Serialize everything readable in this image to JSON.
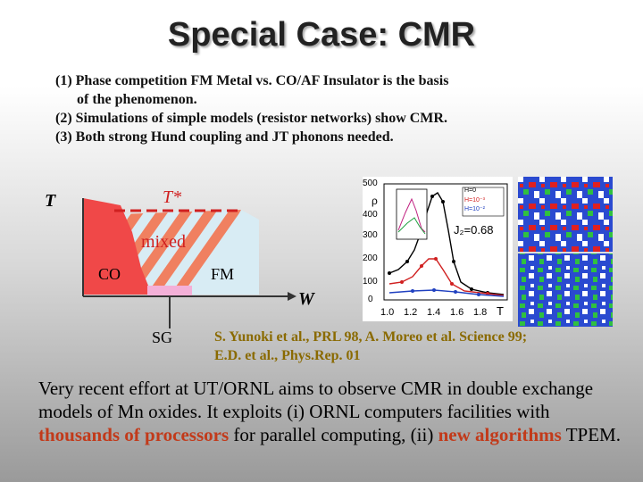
{
  "title": "Special Case: CMR",
  "points": [
    "(1) Phase competition FM Metal vs. CO/AF Insulator is the basis",
    "of the phenomenon.",
    "(2) Simulations of simple models (resistor networks) show CMR.",
    "(3) Both strong Hund coupling and JT phonons needed."
  ],
  "phase_diagram": {
    "t_axis": "T",
    "w_axis": "W",
    "t_star": "T*",
    "mixed": "mixed",
    "co": "CO",
    "fm": "FM",
    "sg": "SG",
    "colors": {
      "co": "#f04848",
      "fm": "#d8ecf4",
      "stripe": "#f08060",
      "sg": "#f4b0d8"
    }
  },
  "rho_plot": {
    "y_label": "ρ",
    "x_label": "T",
    "y_ticks": [
      "500",
      "400",
      "300",
      "200",
      "100",
      "0"
    ],
    "x_ticks": [
      "1.0",
      "1.2",
      "1.4",
      "1.6",
      "1.8"
    ],
    "legend": [
      "H=0",
      "H=10⁻³",
      "H=10⁻²"
    ],
    "annotation": "J₂=0.68"
  },
  "references": [
    "S. Yunoki et al., PRL 98, A. Moreo et al. Science 99;",
    "E.D. et al., Phys.Rep. 01"
  ],
  "paragraph": {
    "part1": "Very recent effort at UT/ORNL aims to observe CMR in double exchange models of Mn oxides. It exploits (i) ORNL computers facilities with ",
    "hl1": "thousands of processors",
    "part2": " for parallel computing, (ii) ",
    "hl2": "new algorithms",
    "part3": " TPEM."
  }
}
